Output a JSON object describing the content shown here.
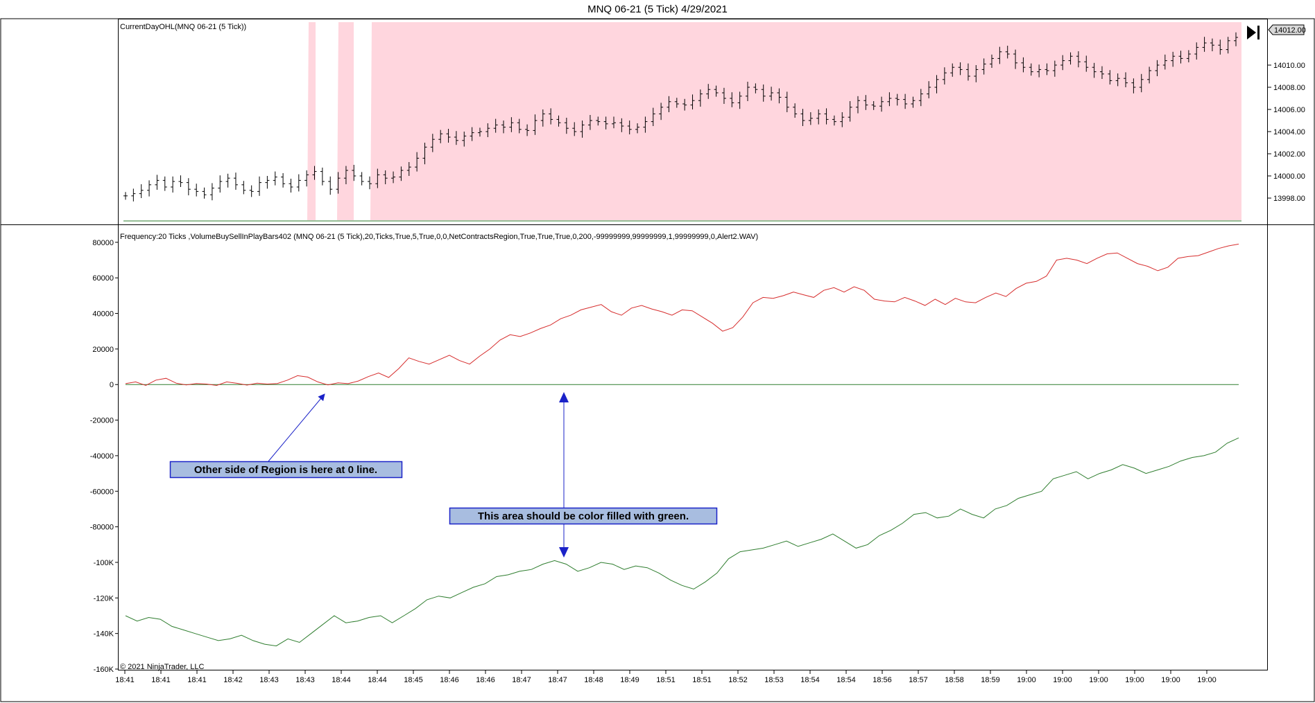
{
  "chart_title": "MNQ 06-21 (5 Tick)  4/29/2021",
  "copyright": "© 2021 NinjaTrader, LLC",
  "colors": {
    "region_fill": "#ffd6de",
    "buy_line": "#d62c2c",
    "sell_line": "#2e7d2e",
    "zero_line": "#2e7d2e",
    "annotation_fill": "#a8bde0",
    "annotation_border": "#1a22c8",
    "arrow": "#1a22c8",
    "price_bar": "#000000"
  },
  "price_panel": {
    "indicator_label": "CurrentDayOHL(MNQ 06-21 (5 Tick))",
    "current_price_badge": "14012.00",
    "scroll_end_icon": "jump-to-end-icon"
  },
  "volume_panel": {
    "indicator_label": "Frequency:20 Ticks    ,VolumeBuySellInPlayBars402    (MNQ 06-21 (5 Tick),20,Ticks,True,5,True,0,0,NetContractsRegion,True,True,True,0,200,-99999999,99999999,1,99999999,0,Alert2.WAV)"
  },
  "annotations": {
    "region_note": "Other side of Region is here at 0 line.",
    "fill_note": "This area should be color filled with green."
  },
  "chart_data": [
    {
      "type": "ohlc",
      "ylim": [
        13996,
        14014
      ],
      "yticks": [
        "14010.00",
        "14008.00",
        "14006.00",
        "14004.00",
        "14002.00",
        "14000.00",
        "13998.00"
      ],
      "series": [
        {
          "name": "MNQ 06-21 (5 Tick)",
          "values": [
            13998.2,
            13998.4,
            13998.7,
            13999.2,
            13999.6,
            13999.0,
            13999.5,
            13999.4,
            13998.8,
            13998.6,
            13998.3,
            13998.9,
            13999.5,
            13999.8,
            13999.2,
            13998.7,
            13998.6,
            13999.4,
            13999.6,
            13999.9,
            13999.3,
            13999.0,
            13999.6,
            14000.1,
            14000.4,
            13999.5,
            13998.8,
            13999.8,
            14000.5,
            14000.0,
            13999.5,
            13999.3,
            14000.1,
            13999.8,
            13999.9,
            14000.5,
            14000.8,
            14001.6,
            14002.6,
            14003.3,
            14003.8,
            14003.5,
            14003.2,
            14003.6,
            14003.9,
            14004.0,
            14004.3,
            14004.6,
            14004.4,
            14004.8,
            14004.2,
            14004.1,
            14005.0,
            14005.6,
            14005.1,
            14004.8,
            14004.3,
            14004.0,
            14004.6,
            14005.0,
            14004.9,
            14004.7,
            14004.8,
            14004.5,
            14004.2,
            14004.4,
            14004.9,
            14005.6,
            14006.2,
            14006.7,
            14006.5,
            14006.4,
            14006.8,
            14007.4,
            14007.8,
            14007.5,
            14007.0,
            14006.6,
            14007.2,
            14008.0,
            14007.8,
            14007.2,
            14007.5,
            14007.1,
            14006.2,
            14005.6,
            14005.0,
            14005.2,
            14005.6,
            14005.1,
            14004.9,
            14005.3,
            14006.2,
            14006.8,
            14006.4,
            14006.3,
            14006.7,
            14007.0,
            14006.9,
            14006.5,
            14006.8,
            14007.4,
            14008.0,
            14008.7,
            14009.3,
            14009.8,
            14009.6,
            14009.0,
            14009.6,
            14010.1,
            14010.6,
            14011.2,
            14011.0,
            14010.2,
            14009.8,
            14009.4,
            14009.6,
            14009.5,
            14010.0,
            14010.4,
            14010.8,
            14010.3,
            14009.8,
            14009.4,
            14009.2,
            14008.6,
            14008.8,
            14008.4,
            14008.0,
            14008.7,
            14009.5,
            14010.0,
            14010.4,
            14010.8,
            14010.6,
            14011.0,
            14011.6,
            14012.0,
            14011.8,
            14011.4,
            14012.2,
            14012.5
          ]
        }
      ],
      "shaded_regions": [
        [
          0.167,
          0.172
        ],
        [
          0.193,
          0.206
        ],
        [
          0.222,
          1.0
        ]
      ]
    },
    {
      "type": "line",
      "x_tick_labels": [
        "18:41",
        "18:41",
        "18:41",
        "18:42",
        "18:43",
        "18:43",
        "18:44",
        "18:44",
        "18:45",
        "18:46",
        "18:46",
        "18:47",
        "18:47",
        "18:48",
        "18:49",
        "18:51",
        "18:51",
        "18:52",
        "18:53",
        "18:54",
        "18:54",
        "18:56",
        "18:57",
        "18:58",
        "18:59",
        "19:00",
        "19:00",
        "19:00",
        "19:00",
        "19:00",
        "19:00"
      ],
      "ylim": [
        -160000,
        85000
      ],
      "yticks": [
        80000,
        60000,
        40000,
        20000,
        0,
        -20000,
        -40000,
        -60000,
        -80000,
        -100000,
        -120000,
        -140000,
        -160000
      ],
      "ytick_labels": [
        "80000",
        "60000",
        "40000",
        "20000",
        "0",
        "-20000",
        "-40000",
        "-60000",
        "-80000",
        "-100K",
        "-120K",
        "-140K",
        "-160K"
      ],
      "series": [
        {
          "values": [
            500,
            1500,
            -500,
            2500,
            3500,
            800,
            -200,
            600,
            300,
            -500,
            1500,
            700,
            -300,
            800,
            300,
            600,
            2500,
            5000,
            4200,
            1500,
            -200,
            1000,
            500,
            2000,
            4500,
            6500,
            4000,
            9000,
            15000,
            13000,
            11500,
            14000,
            16500,
            13500,
            11500,
            16000,
            20000,
            25000,
            28000,
            27000,
            29000,
            31500,
            33500,
            37000,
            39000,
            42000,
            43500,
            45000,
            41000,
            39000,
            43000,
            44500,
            42500,
            41000,
            39000,
            42000,
            41500,
            38000,
            34500,
            30000,
            32000,
            38000,
            46000,
            49000,
            48500,
            50000,
            52000,
            50500,
            49000,
            53000,
            54500,
            52000,
            55000,
            53000,
            48000,
            47000,
            46500,
            49000,
            47000,
            44500,
            48000,
            45000,
            48500,
            46500,
            46000,
            49000,
            51500,
            49500,
            54000,
            57000,
            58000,
            61000,
            70000,
            71000,
            70000,
            68000,
            71000,
            73500,
            74000,
            71000,
            68000,
            66500,
            64000,
            66000,
            71000,
            72000,
            72500,
            74500,
            76500,
            78000,
            79000
          ]
        },
        {
          "values": [
            -130000,
            -133000,
            -131000,
            -132000,
            -136000,
            -138000,
            -140000,
            -142000,
            -144000,
            -143000,
            -141000,
            -144000,
            -146000,
            -147000,
            -143000,
            -145000,
            -140000,
            -135000,
            -130000,
            -134000,
            -133000,
            -131000,
            -130000,
            -134000,
            -130000,
            -126000,
            -121000,
            -119000,
            -120000,
            -117000,
            -114000,
            -112000,
            -108000,
            -107000,
            -105000,
            -104000,
            -101000,
            -99000,
            -101000,
            -105000,
            -103000,
            -100000,
            -101000,
            -104000,
            -102000,
            -103000,
            -106000,
            -110000,
            -113000,
            -115000,
            -111000,
            -106000,
            -98000,
            -94000,
            -93000,
            -92000,
            -90000,
            -88000,
            -91000,
            -89000,
            -87000,
            -84000,
            -88000,
            -92000,
            -90000,
            -85000,
            -82000,
            -78000,
            -73000,
            -72000,
            -75000,
            -74000,
            -70000,
            -73000,
            -75000,
            -70000,
            -68000,
            -64000,
            -62000,
            -60000,
            -53000,
            -51000,
            -49000,
            -53000,
            -50000,
            -48000,
            -45000,
            -47000,
            -50000,
            -48000,
            -46000,
            -43000,
            -41000,
            -40000,
            -38000,
            -33000,
            -30000
          ]
        }
      ]
    }
  ]
}
